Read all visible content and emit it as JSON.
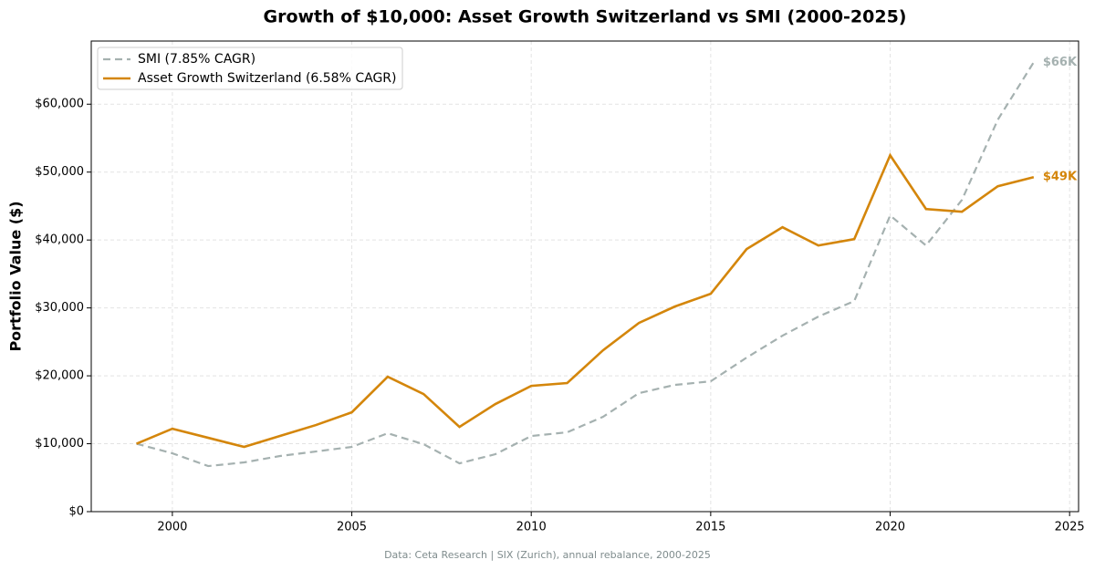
{
  "chart_data": {
    "type": "line",
    "title": "Growth of $10,000: Asset Growth Switzerland vs SMI (2000-2025)",
    "y_label": "Portfolio Value ($)",
    "footnote": "Data: Ceta Research | SIX (Zurich), annual rebalance, 2000-2025",
    "x": [
      1999,
      2000,
      2001,
      2002,
      2003,
      2004,
      2005,
      2006,
      2007,
      2008,
      2009,
      2010,
      2011,
      2012,
      2013,
      2014,
      2015,
      2016,
      2017,
      2018,
      2019,
      2020,
      2021,
      2022,
      2023,
      2024
    ],
    "series": [
      {
        "name": "SMI (7.85% CAGR)",
        "color": "#a5b1b0",
        "dash": true,
        "end_label": "$66K",
        "values": [
          10000,
          8590,
          6710,
          7250,
          8190,
          8860,
          9530,
          11540,
          9930,
          7110,
          8460,
          11140,
          11680,
          13960,
          17450,
          18660,
          19190,
          22680,
          25910,
          28720,
          31010,
          43620,
          39190,
          45900,
          57720,
          66170
        ]
      },
      {
        "name": "Asset Growth Switzerland (6.58% CAGR)",
        "color": "#d4860b",
        "dash": false,
        "end_label": "$49K",
        "values": [
          10000,
          12210,
          10870,
          9530,
          11140,
          12750,
          14630,
          19870,
          17320,
          12480,
          15840,
          18520,
          18930,
          23760,
          27790,
          30200,
          32080,
          38660,
          41880,
          39190,
          40130,
          52480,
          44560,
          44160,
          47920,
          49260
        ]
      }
    ],
    "xlim": [
      1997.74,
      2025.25
    ],
    "xticks": [
      2000,
      2005,
      2010,
      2015,
      2020,
      2025
    ],
    "ylim": [
      0,
      69300
    ],
    "yticks": [
      {
        "value": 0,
        "label": "$0"
      },
      {
        "value": 10000,
        "label": "$10,000"
      },
      {
        "value": 20000,
        "label": "$20,000"
      },
      {
        "value": 30000,
        "label": "$30,000"
      },
      {
        "value": 40000,
        "label": "$40,000"
      },
      {
        "value": 50000,
        "label": "$50,000"
      },
      {
        "value": 60000,
        "label": "$60,000"
      }
    ],
    "grid": true,
    "legend": "upper-left"
  }
}
